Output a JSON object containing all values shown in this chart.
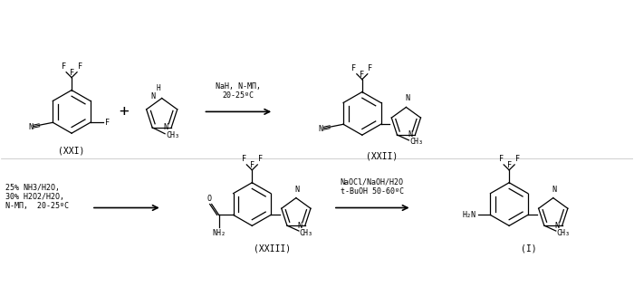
{
  "background_color": "#ffffff",
  "fig_width": 7.0,
  "fig_height": 3.38,
  "dpi": 100,
  "reaction1_conditions": "NaH, N-МП,\n20-25ºC",
  "reaction2_conditions": "25% NH3/H2O,\n30% H2O2/H2O,\nN-МП,  20-25ºC",
  "reaction3_conditions": "NaOCl/NaOH/H2O\nt-BuOH 50-60ºC",
  "label_XXI": "(XXI)",
  "label_XXII": "(XXII)",
  "label_XXIII": "(XXIII)",
  "label_I": "(I)"
}
